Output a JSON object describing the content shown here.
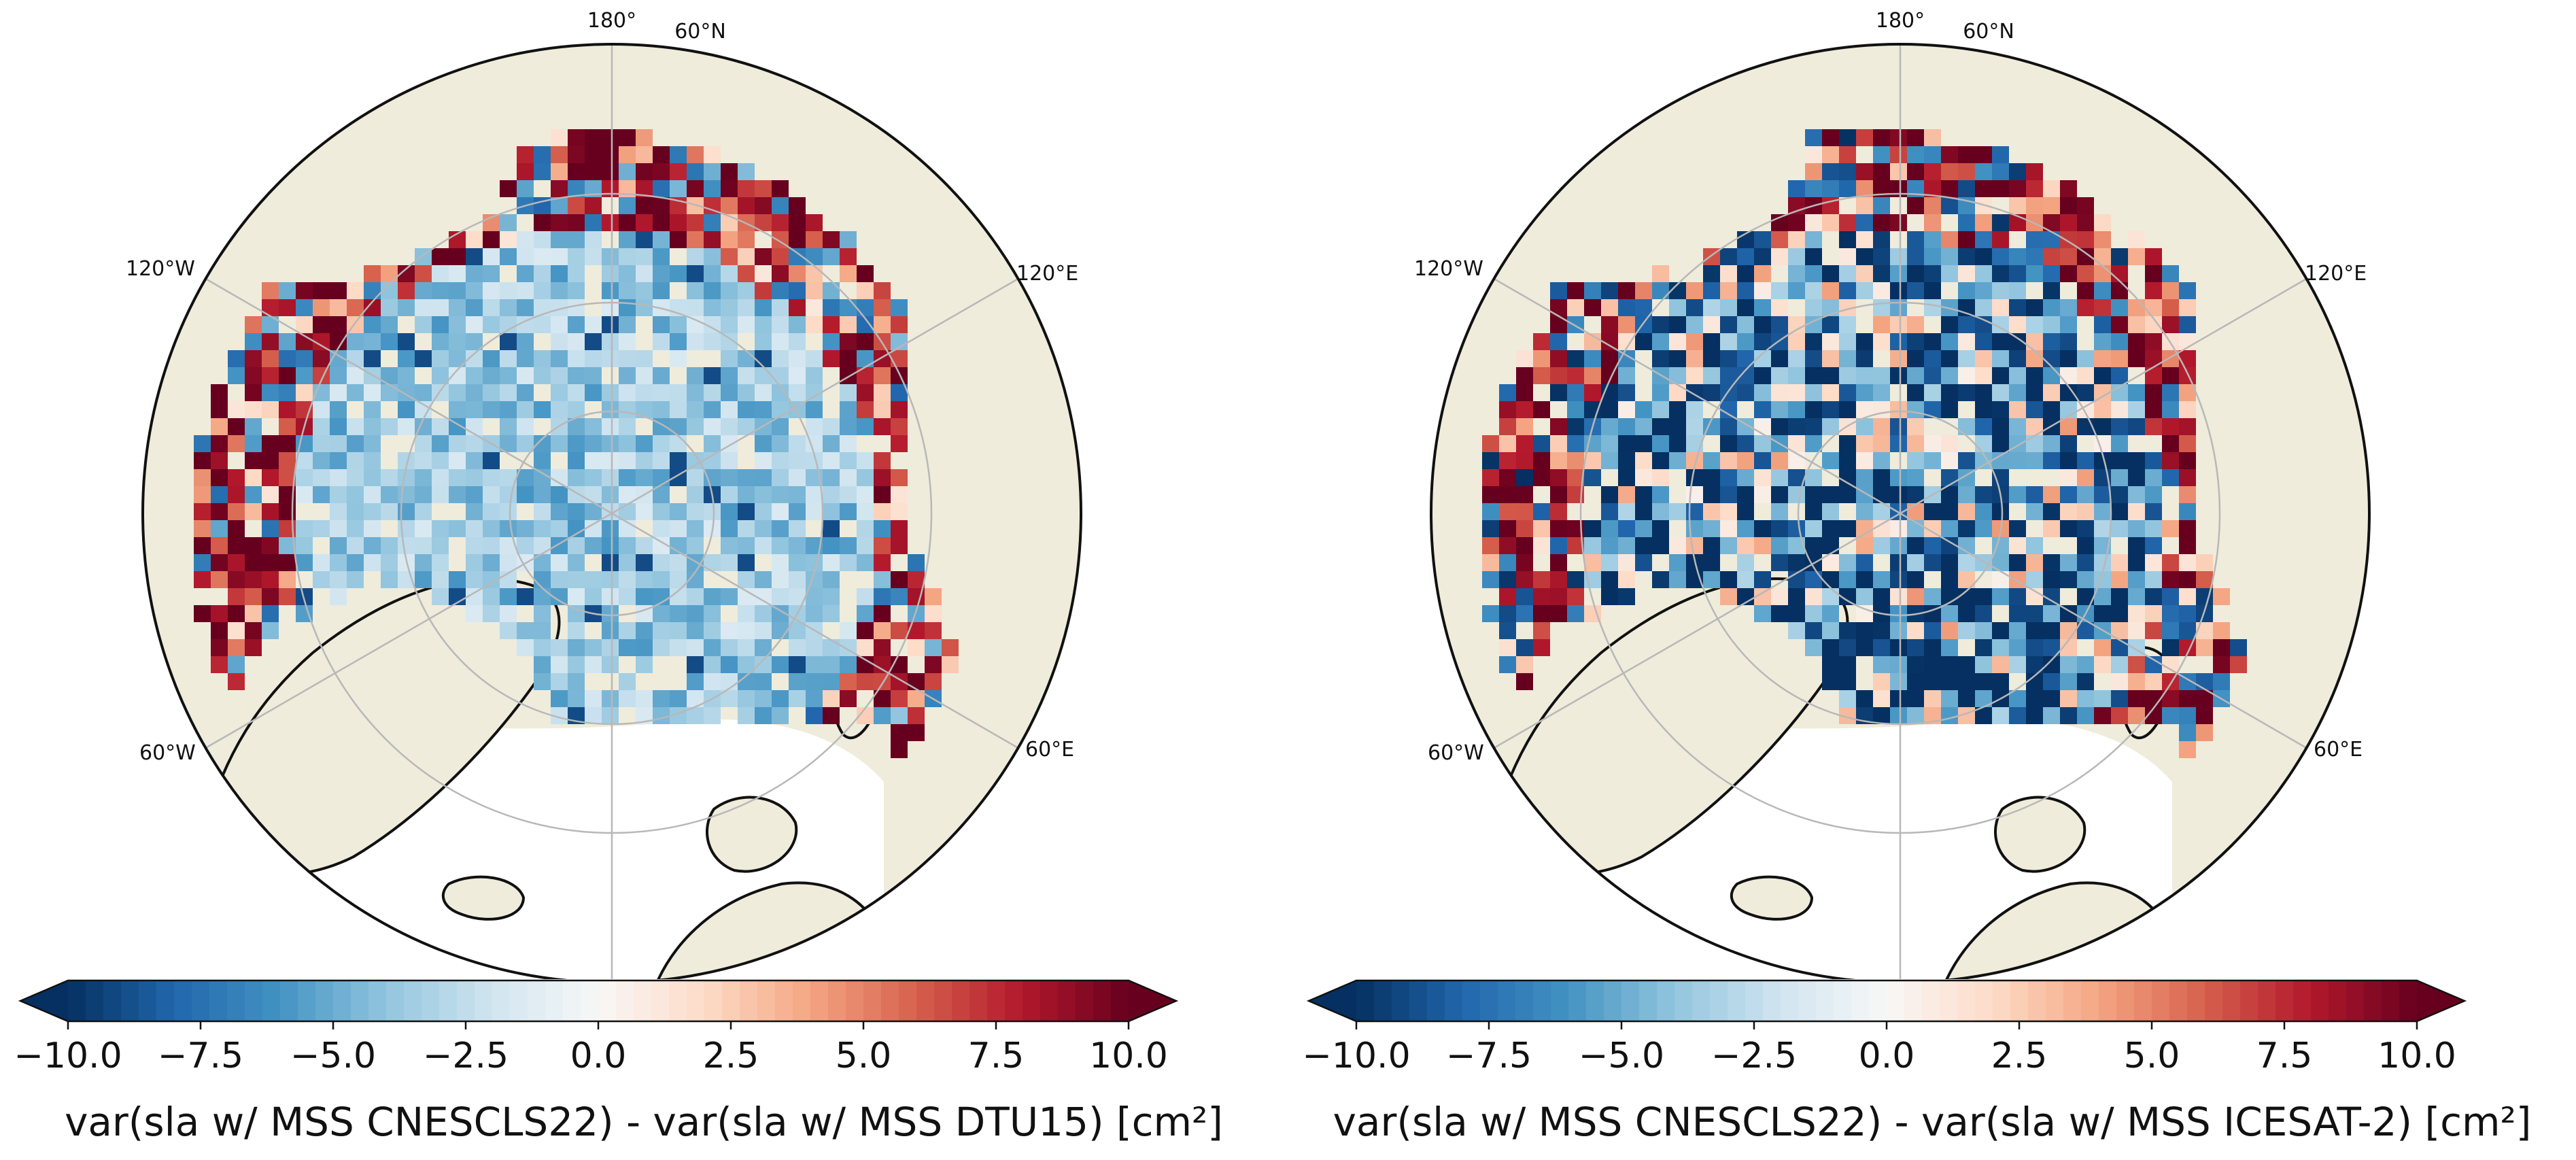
{
  "figure": {
    "panels": [
      {
        "id": "left",
        "colorbar_label": "var(sla w/ MSS CNESCLS22) - var(sla w/ MSS DTU15) [cm²]",
        "pattern": "mild"
      },
      {
        "id": "right",
        "colorbar_label": "var(sla w/ MSS CNESCLS22) - var(sla w/ MSS ICESAT-2) [cm²]",
        "pattern": "strong"
      }
    ],
    "map_labels": {
      "top": "180°",
      "lat": "60°N",
      "upper_left": "120°W",
      "upper_right": "120°E",
      "lower_left": "60°W",
      "lower_right": "60°E"
    },
    "colorbar": {
      "min": -10.0,
      "max": 10.0,
      "ticks": [
        "−10.0",
        "−7.5",
        "−5.0",
        "−2.5",
        "0.0",
        "2.5",
        "5.0",
        "7.5",
        "10.0"
      ],
      "extend": "both",
      "colormap": "RdBu_r"
    }
  },
  "chart_data": [
    {
      "type": "heatmap",
      "title": "",
      "projection": "North polar stereographic (≥60°N)",
      "variable": "var(sla w/ MSS CNESCLS22) - var(sla w/ MSS DTU15)",
      "units": "cm²",
      "vmin": -10.0,
      "vmax": 10.0,
      "colormap": "RdBu_r",
      "description_of_values": "mostly slightly negative (-2 to -5) in central Arctic; strong positive (>7.5) along coasts and archipelagos"
    },
    {
      "type": "heatmap",
      "title": "",
      "projection": "North polar stereographic (≥60°N)",
      "variable": "var(sla w/ MSS CNESCLS22) - var(sla w/ MSS ICESAT-2)",
      "units": "cm²",
      "vmin": -10.0,
      "vmax": 10.0,
      "colormap": "RdBu_r",
      "description_of_values": "strongly negative (<-7.5) patches across central Arctic; strong positive (>7.5) along coasts"
    }
  ],
  "colors": {
    "land": "#efecdc",
    "ocean_nodata": "#ffffff",
    "grid": "#b8b8b8",
    "coast": "#111111",
    "neg_strong": "#053061",
    "pos_strong": "#67001f"
  }
}
